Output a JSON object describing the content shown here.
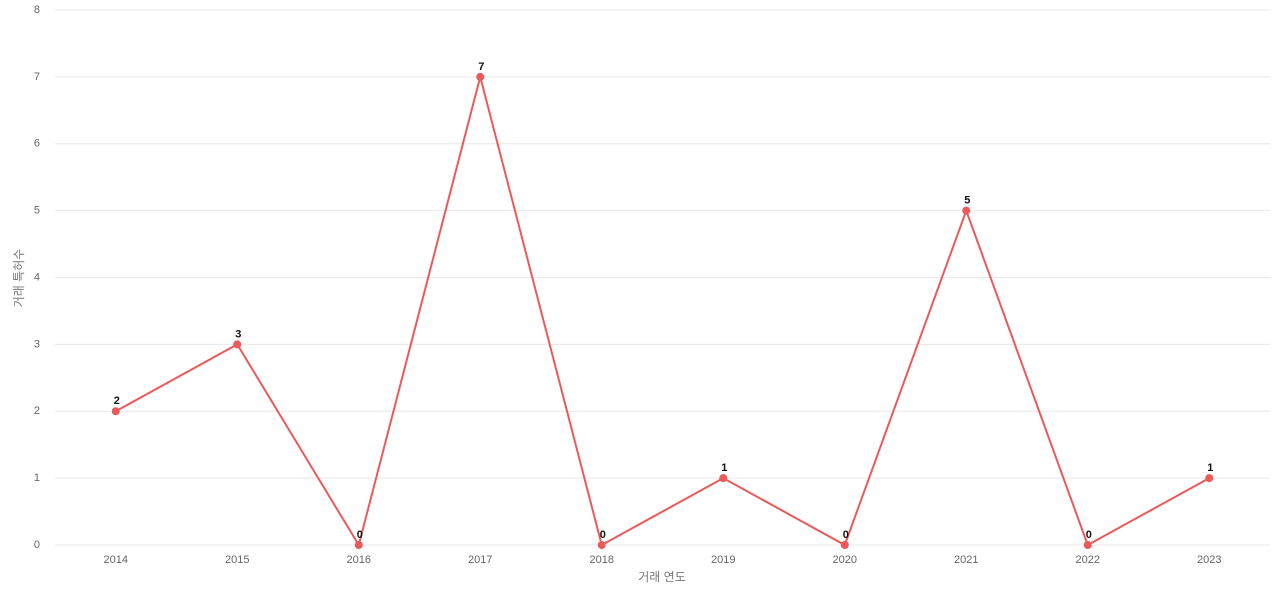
{
  "chart_data": {
    "type": "line",
    "x_label": "거래 연도",
    "y_label": "거래 특허수",
    "categories": [
      "2014",
      "2015",
      "2016",
      "2017",
      "2018",
      "2019",
      "2020",
      "2021",
      "2022",
      "2023"
    ],
    "values": [
      2,
      3,
      0,
      7,
      0,
      1,
      0,
      5,
      0,
      1
    ],
    "color": "#eb5a5a",
    "ylim": [
      0,
      8
    ],
    "yticks": [
      0,
      1,
      2,
      3,
      4,
      5,
      6,
      7,
      8
    ],
    "grid": true
  }
}
